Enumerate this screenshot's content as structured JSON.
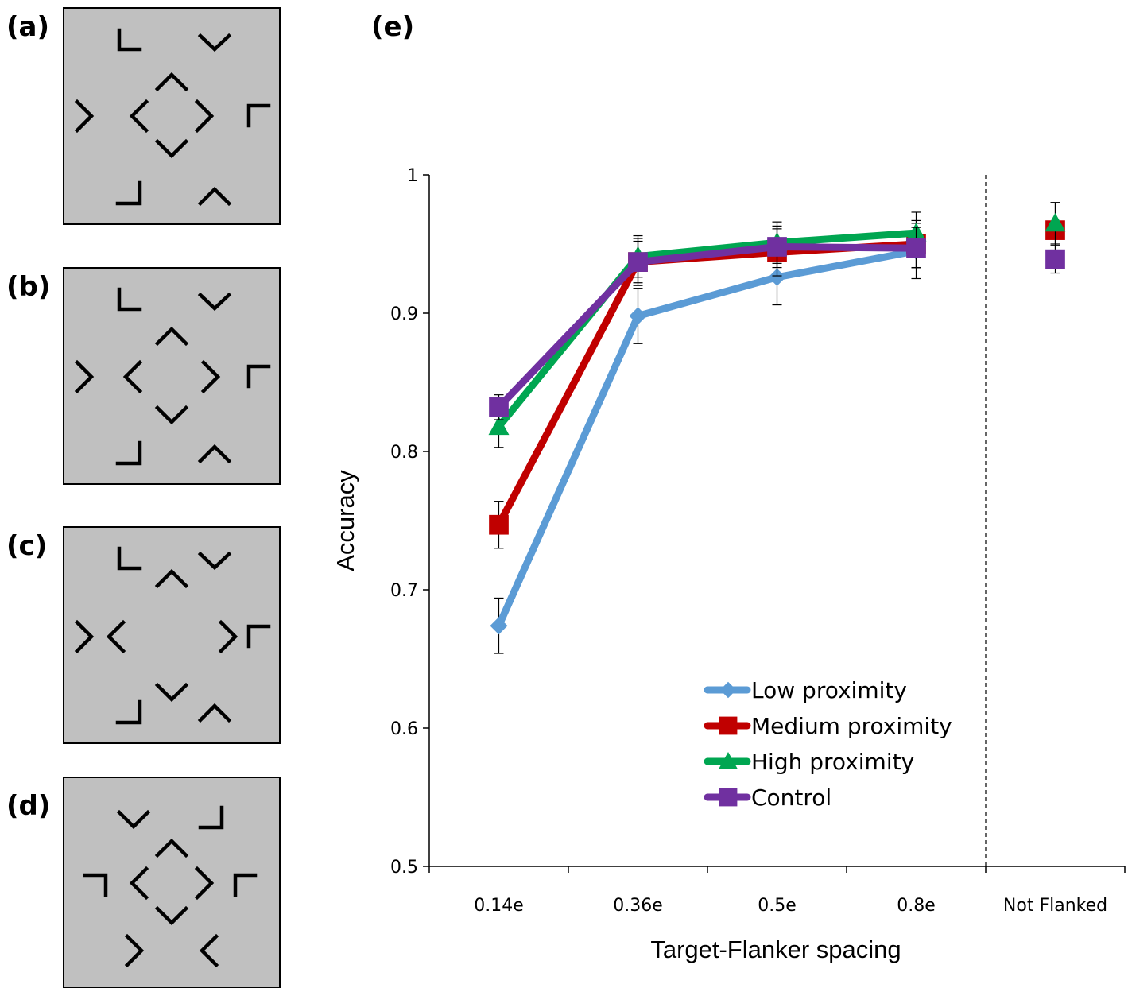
{
  "panels": [
    {
      "label": "(a)"
    },
    {
      "label": "(b)"
    },
    {
      "label": "(c)"
    },
    {
      "label": "(d)"
    }
  ],
  "chart_data": {
    "type": "line",
    "panel_label": "(e)",
    "title": "",
    "xlabel": "Target-Flanker spacing",
    "ylabel": "Accuracy",
    "categories": [
      "0.14e",
      "0.36e",
      "0.5e",
      "0.8e",
      "Not Flanked"
    ],
    "ylim": [
      0.5,
      1
    ],
    "yticks": [
      "0.5",
      "0.6",
      "0.7",
      "0.8",
      "0.9",
      "1"
    ],
    "grid": false,
    "legend_position": "lower-right",
    "divider_after_category": "0.8e",
    "series": [
      {
        "name": "Low proximity",
        "marker": "diamond",
        "color": "#5B9BD5",
        "values": [
          0.674,
          0.898,
          0.926,
          0.945,
          null
        ],
        "errors": [
          0.02,
          0.02,
          0.02,
          0.02,
          null
        ]
      },
      {
        "name": "Medium proximity",
        "marker": "square",
        "color": "#C00000",
        "values": [
          0.747,
          0.937,
          0.944,
          0.95,
          0.96
        ],
        "errors": [
          0.017,
          0.017,
          0.017,
          0.017,
          0.02
        ]
      },
      {
        "name": "High proximity",
        "marker": "triangle",
        "color": "#00A651",
        "values": [
          0.818,
          0.941,
          0.951,
          0.958,
          0.965
        ],
        "errors": [
          0.015,
          0.015,
          0.015,
          0.015,
          0.015
        ]
      },
      {
        "name": "Control",
        "marker": "square",
        "color": "#7030A0",
        "values": [
          0.832,
          0.937,
          0.948,
          0.947,
          0.939
        ],
        "errors": [
          0.009,
          0.015,
          0.015,
          0.015,
          0.01
        ]
      }
    ]
  }
}
